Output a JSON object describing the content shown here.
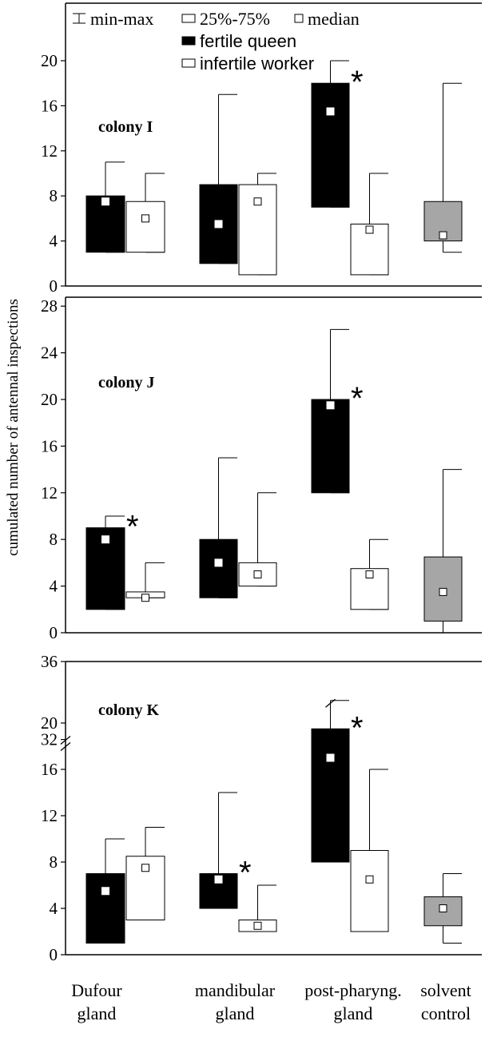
{
  "colors": {
    "queen": "#000000",
    "worker": "#ffffff",
    "solvent": "#a6a6a6",
    "axis": "#000000",
    "median_marker": "#ffffff"
  },
  "legend": {
    "minmax": "min-max",
    "iqr": "25%-75%",
    "median": "median",
    "queen": "fertile queen",
    "worker": "infertile worker"
  },
  "y_axis_label": "cumulated number of antennal inspections",
  "categories": [
    {
      "line1": "Dufour",
      "line2": "gland"
    },
    {
      "line1": "mandibular",
      "line2": "gland"
    },
    {
      "line1": "post-pharyng.",
      "line2": "gland"
    },
    {
      "line1": "solvent",
      "line2": "control"
    }
  ],
  "significance_marker": "*",
  "chart_data": [
    {
      "type": "boxplot",
      "title": "colony I",
      "ylim": [
        0,
        22
      ],
      "yticks": [
        0,
        4,
        8,
        12,
        16,
        20
      ],
      "series": [
        {
          "name": "fertile queen",
          "boxes": [
            {
              "category": "Dufour gland",
              "min": 3,
              "q1": 3,
              "median": 7.5,
              "q3": 8,
              "max": 11,
              "significant": false
            },
            {
              "category": "mandibular gland",
              "min": 2,
              "q1": 2,
              "median": 5.5,
              "q3": 9,
              "max": 17,
              "significant": false
            },
            {
              "category": "post-pharyng. gland",
              "min": 7,
              "q1": 7,
              "median": 15.5,
              "q3": 18,
              "max": 20,
              "significant": true
            }
          ]
        },
        {
          "name": "infertile worker",
          "boxes": [
            {
              "category": "Dufour gland",
              "min": 3,
              "q1": 3,
              "median": 6,
              "q3": 7.5,
              "max": 10,
              "significant": false
            },
            {
              "category": "mandibular gland",
              "min": 1,
              "q1": 1,
              "median": 7.5,
              "q3": 9,
              "max": 10,
              "significant": false
            },
            {
              "category": "post-pharyng. gland",
              "min": 1,
              "q1": 1,
              "median": 5,
              "q3": 5.5,
              "max": 10,
              "significant": false
            }
          ]
        },
        {
          "name": "solvent control",
          "boxes": [
            {
              "category": "solvent control",
              "min": 3,
              "q1": 4,
              "median": 4.5,
              "q3": 7.5,
              "max": 18,
              "significant": false
            }
          ]
        }
      ]
    },
    {
      "type": "boxplot",
      "title": "colony J",
      "ylim": [
        0,
        28
      ],
      "yticks": [
        0,
        4,
        8,
        12,
        16,
        20,
        24,
        28
      ],
      "series": [
        {
          "name": "fertile queen",
          "boxes": [
            {
              "category": "Dufour gland",
              "min": 2,
              "q1": 2,
              "median": 8,
              "q3": 9,
              "max": 10,
              "significant": true
            },
            {
              "category": "mandibular gland",
              "min": 3,
              "q1": 3,
              "median": 6,
              "q3": 8,
              "max": 15,
              "significant": false
            },
            {
              "category": "post-pharyng. gland",
              "min": 12,
              "q1": 12,
              "median": 19.5,
              "q3": 20,
              "max": 26,
              "significant": true
            }
          ]
        },
        {
          "name": "infertile worker",
          "boxes": [
            {
              "category": "Dufour gland",
              "min": 3,
              "q1": 3,
              "median": 3,
              "q3": 3.5,
              "max": 6,
              "significant": false
            },
            {
              "category": "mandibular gland",
              "min": 4,
              "q1": 4,
              "median": 5,
              "q3": 6,
              "max": 12,
              "significant": false
            },
            {
              "category": "post-pharyng. gland",
              "min": 2,
              "q1": 2,
              "median": 5,
              "q3": 5.5,
              "max": 8,
              "significant": false
            }
          ]
        },
        {
          "name": "solvent control",
          "boxes": [
            {
              "category": "solvent control",
              "min": 0,
              "q1": 1,
              "median": 3.5,
              "q3": 6.5,
              "max": 14,
              "significant": false
            }
          ]
        }
      ]
    },
    {
      "type": "boxplot",
      "title": "colony K",
      "ylim": [
        0,
        36
      ],
      "yticks": [
        0,
        4,
        8,
        12,
        16,
        20,
        32,
        36
      ],
      "axis_break": [
        22,
        31
      ],
      "series": [
        {
          "name": "fertile queen",
          "boxes": [
            {
              "category": "Dufour gland",
              "min": 1,
              "q1": 1,
              "median": 5.5,
              "q3": 7,
              "max": 10,
              "significant": false
            },
            {
              "category": "mandibular gland",
              "min": 4,
              "q1": 4,
              "median": 6.5,
              "q3": 7,
              "max": 14,
              "significant": true
            },
            {
              "category": "post-pharyng. gland",
              "min": 8,
              "q1": 8,
              "median": 17,
              "q3": 19.5,
              "max": 34,
              "significant": true
            }
          ]
        },
        {
          "name": "infertile worker",
          "boxes": [
            {
              "category": "Dufour gland",
              "min": 3,
              "q1": 3,
              "median": 7.5,
              "q3": 8.5,
              "max": 11,
              "significant": false
            },
            {
              "category": "mandibular gland",
              "min": 2,
              "q1": 2,
              "median": 2.5,
              "q3": 3,
              "max": 6,
              "significant": false
            },
            {
              "category": "post-pharyng. gland",
              "min": 2,
              "q1": 2,
              "median": 6.5,
              "q3": 9,
              "max": 16,
              "significant": false
            }
          ]
        },
        {
          "name": "solvent control",
          "boxes": [
            {
              "category": "solvent control",
              "min": 1,
              "q1": 2.5,
              "median": 4,
              "q3": 5,
              "max": 7,
              "significant": false
            }
          ]
        }
      ]
    }
  ]
}
